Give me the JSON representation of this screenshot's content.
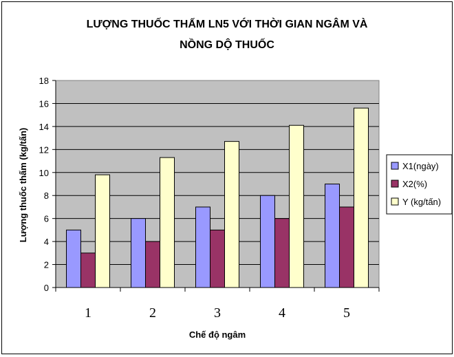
{
  "chart_data": {
    "type": "bar",
    "title_line1": "LƯỢNG THUỐC THẤM LN5 VỚI THỜI GIAN NGÂM VÀ",
    "title_line2": "NỒNG DỘ THUỐC",
    "xlabel": "Chế độ ngâm",
    "ylabel": "Lượng thuốc thấm (kg/tấn)",
    "categories": [
      "1",
      "2",
      "3",
      "4",
      "5"
    ],
    "ylim": [
      0,
      18
    ],
    "yticks": [
      "0",
      "2",
      "4",
      "6",
      "8",
      "10",
      "12",
      "14",
      "16",
      "18"
    ],
    "grid": true,
    "legend_position": "right",
    "plot_background": "#c0c0c0",
    "series": [
      {
        "name": "X1(ngày)",
        "color": "#9999ff",
        "values": [
          5,
          6,
          7,
          8,
          9
        ]
      },
      {
        "name": "X2(%)",
        "color": "#993366",
        "values": [
          3,
          4,
          5,
          6,
          7
        ]
      },
      {
        "name": "Y (kg/tấn)",
        "color": "#ffffcc",
        "values": [
          9.8,
          11.3,
          12.7,
          14.1,
          15.6
        ]
      }
    ]
  }
}
